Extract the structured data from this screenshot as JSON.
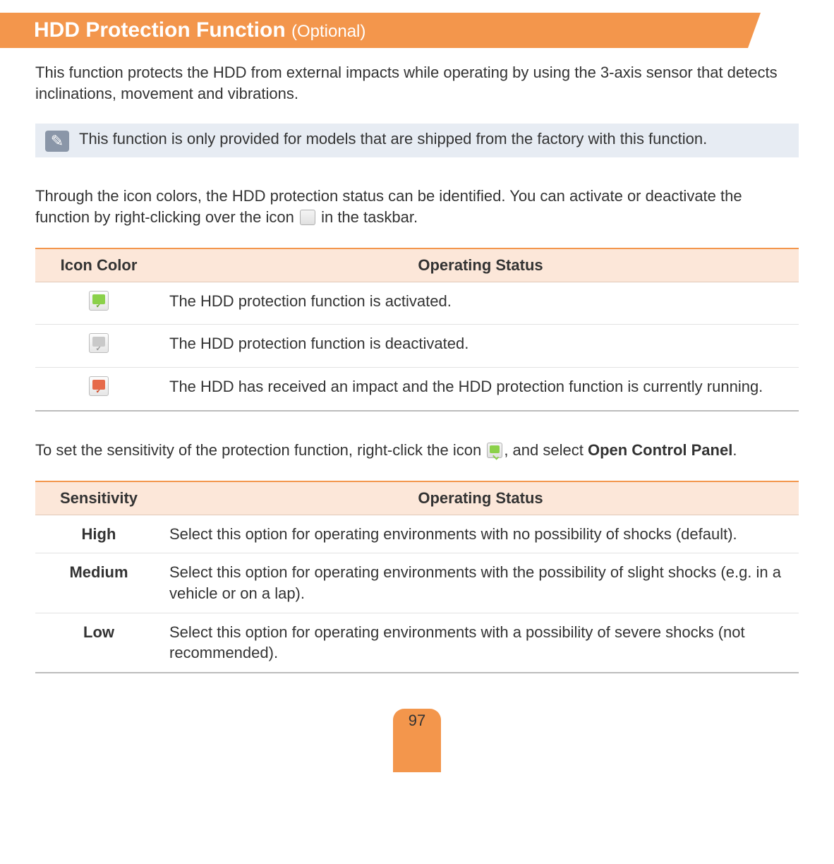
{
  "title": {
    "main": "HDD Protection Function",
    "suffix": "(Optional)"
  },
  "colors": {
    "accent": "#f3964c",
    "header_bg": "#fce7d9",
    "note_bg": "#e7ecf3",
    "note_icon_bg": "#8a96a8",
    "border_top": "#f3964c",
    "border_bottom": "#bcbcbc",
    "row_border": "#e3e3e3"
  },
  "fonts": {
    "title_size_pt": 30,
    "body_size_pt": 22,
    "suffix_size_pt": 24
  },
  "intro_para": "This function protects the HDD from external impacts while operating by using the 3-axis sensor that detects inclinations, movement and vibrations.",
  "note_text": "This function is only provided for models that are shipped from the factory with this function.",
  "mid_para_before": "Through the icon colors, the HDD protection status can be identified. You can activate or deactivate the function by right-clicking over the icon ",
  "mid_para_after": " in the taskbar.",
  "icon_table": {
    "col1_header": "Icon Color",
    "col2_header": "Operating Status",
    "rows": [
      {
        "icon_name": "hdd-icon-green",
        "icon_class": "green",
        "status": "The HDD protection function is activated."
      },
      {
        "icon_name": "hdd-icon-gray",
        "icon_class": "gray",
        "status": "The HDD protection function is deactivated."
      },
      {
        "icon_name": "hdd-icon-red",
        "icon_class": "red",
        "status": "The HDD has received an impact and the HDD protection function is currently running."
      }
    ]
  },
  "sens_para_before": "To set the sensitivity of the protection function, right-click the icon ",
  "sens_para_after_pre_bold": ", and select ",
  "sens_para_bold": "Open Control Panel",
  "sens_para_after_bold": ".",
  "sens_table": {
    "col1_header": "Sensitivity",
    "col2_header": "Operating Status",
    "rows": [
      {
        "level": "High",
        "status": "Select this option for operating environments with no possibility of shocks (default)."
      },
      {
        "level": "Medium",
        "status": "Select this option for operating environments with the possibility of slight shocks (e.g. in a vehicle or on a lap)."
      },
      {
        "level": "Low",
        "status": "Select this option for operating environments with a possibility of severe shocks (not recommended)."
      }
    ]
  },
  "page_number": "97"
}
